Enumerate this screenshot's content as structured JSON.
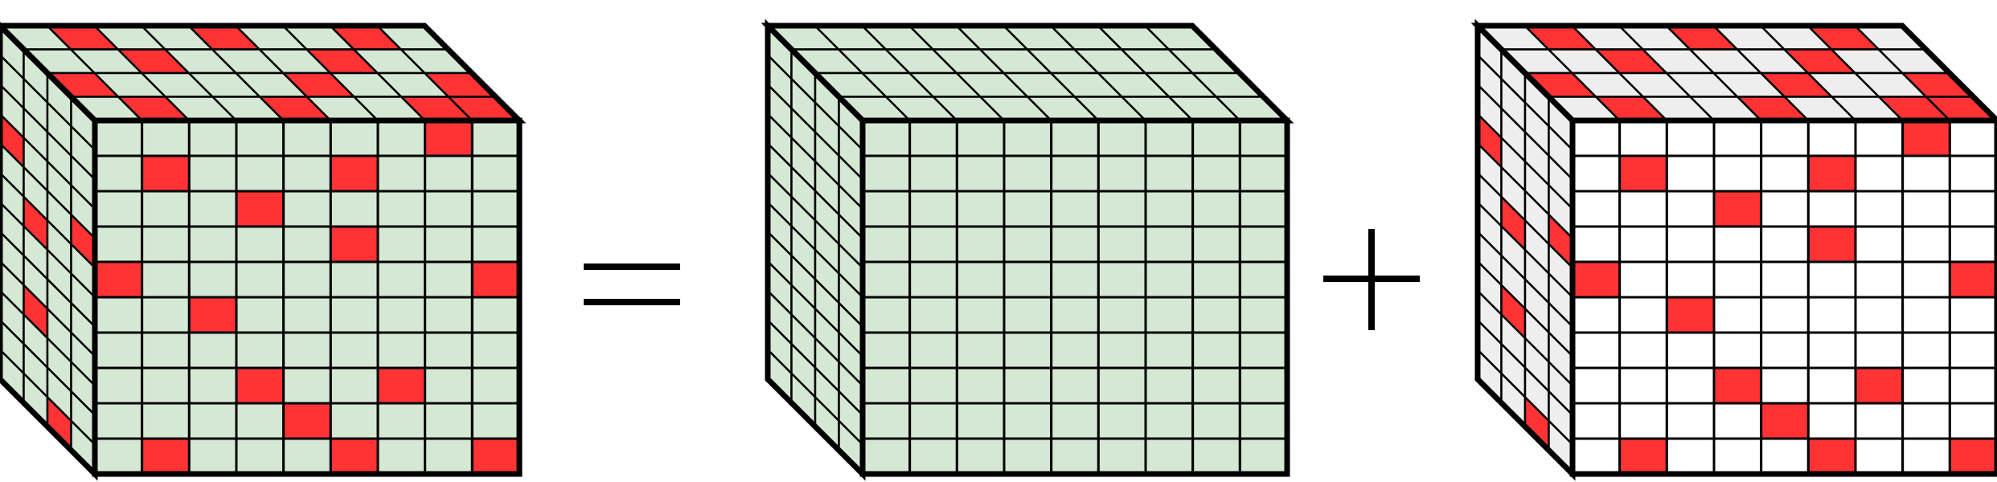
{
  "equation": {
    "operators": [
      "equals-sign",
      "plus-sign"
    ],
    "grid_size": 9,
    "colors": {
      "background_cell": "#d5e8d4",
      "sparse_cell": "#ffffff",
      "sparse_side_cell": "#eeeeee",
      "highlight": "#ff3333",
      "line": "#000000"
    },
    "cubes": [
      {
        "role": "combined-tensor",
        "front_fill": "background_cell",
        "front_red": [
          [
            7,
            0
          ],
          [
            1,
            1
          ],
          [
            5,
            1
          ],
          [
            3,
            2
          ],
          [
            5,
            3
          ],
          [
            0,
            4
          ],
          [
            8,
            4
          ],
          [
            2,
            5
          ],
          [
            3,
            7
          ],
          [
            6,
            7
          ],
          [
            4,
            8
          ],
          [
            1,
            9
          ],
          [
            5,
            9
          ],
          [
            8,
            9
          ]
        ],
        "top_red": [
          [
            1,
            0
          ],
          [
            4,
            0
          ],
          [
            7,
            0
          ],
          [
            2,
            1
          ],
          [
            6,
            1
          ],
          [
            0,
            2
          ],
          [
            5,
            2
          ],
          [
            8,
            2
          ],
          [
            1,
            3
          ],
          [
            4,
            3
          ],
          [
            7,
            3
          ],
          [
            8,
            3
          ]
        ],
        "side_red": [
          [
            0,
            3
          ],
          [
            3,
            4
          ],
          [
            1,
            5
          ],
          [
            4,
            7
          ],
          [
            1,
            8
          ],
          [
            2,
            11
          ]
        ]
      },
      {
        "role": "low-rank-tensor",
        "front_fill": "background_cell",
        "front_red": [],
        "top_red": [],
        "side_red": []
      },
      {
        "role": "sparse-tensor",
        "front_fill": "sparse_cell",
        "front_red": [
          [
            7,
            0
          ],
          [
            1,
            1
          ],
          [
            5,
            1
          ],
          [
            3,
            2
          ],
          [
            5,
            3
          ],
          [
            0,
            4
          ],
          [
            8,
            4
          ],
          [
            2,
            5
          ],
          [
            3,
            7
          ],
          [
            6,
            7
          ],
          [
            4,
            8
          ],
          [
            1,
            9
          ],
          [
            5,
            9
          ],
          [
            8,
            9
          ]
        ],
        "top_red": [
          [
            1,
            0
          ],
          [
            4,
            0
          ],
          [
            7,
            0
          ],
          [
            2,
            1
          ],
          [
            6,
            1
          ],
          [
            0,
            2
          ],
          [
            5,
            2
          ],
          [
            8,
            2
          ],
          [
            1,
            3
          ],
          [
            4,
            3
          ],
          [
            7,
            3
          ],
          [
            8,
            3
          ]
        ],
        "side_red": [
          [
            0,
            3
          ],
          [
            3,
            4
          ],
          [
            1,
            5
          ],
          [
            4,
            7
          ],
          [
            1,
            8
          ],
          [
            2,
            11
          ]
        ]
      }
    ]
  }
}
